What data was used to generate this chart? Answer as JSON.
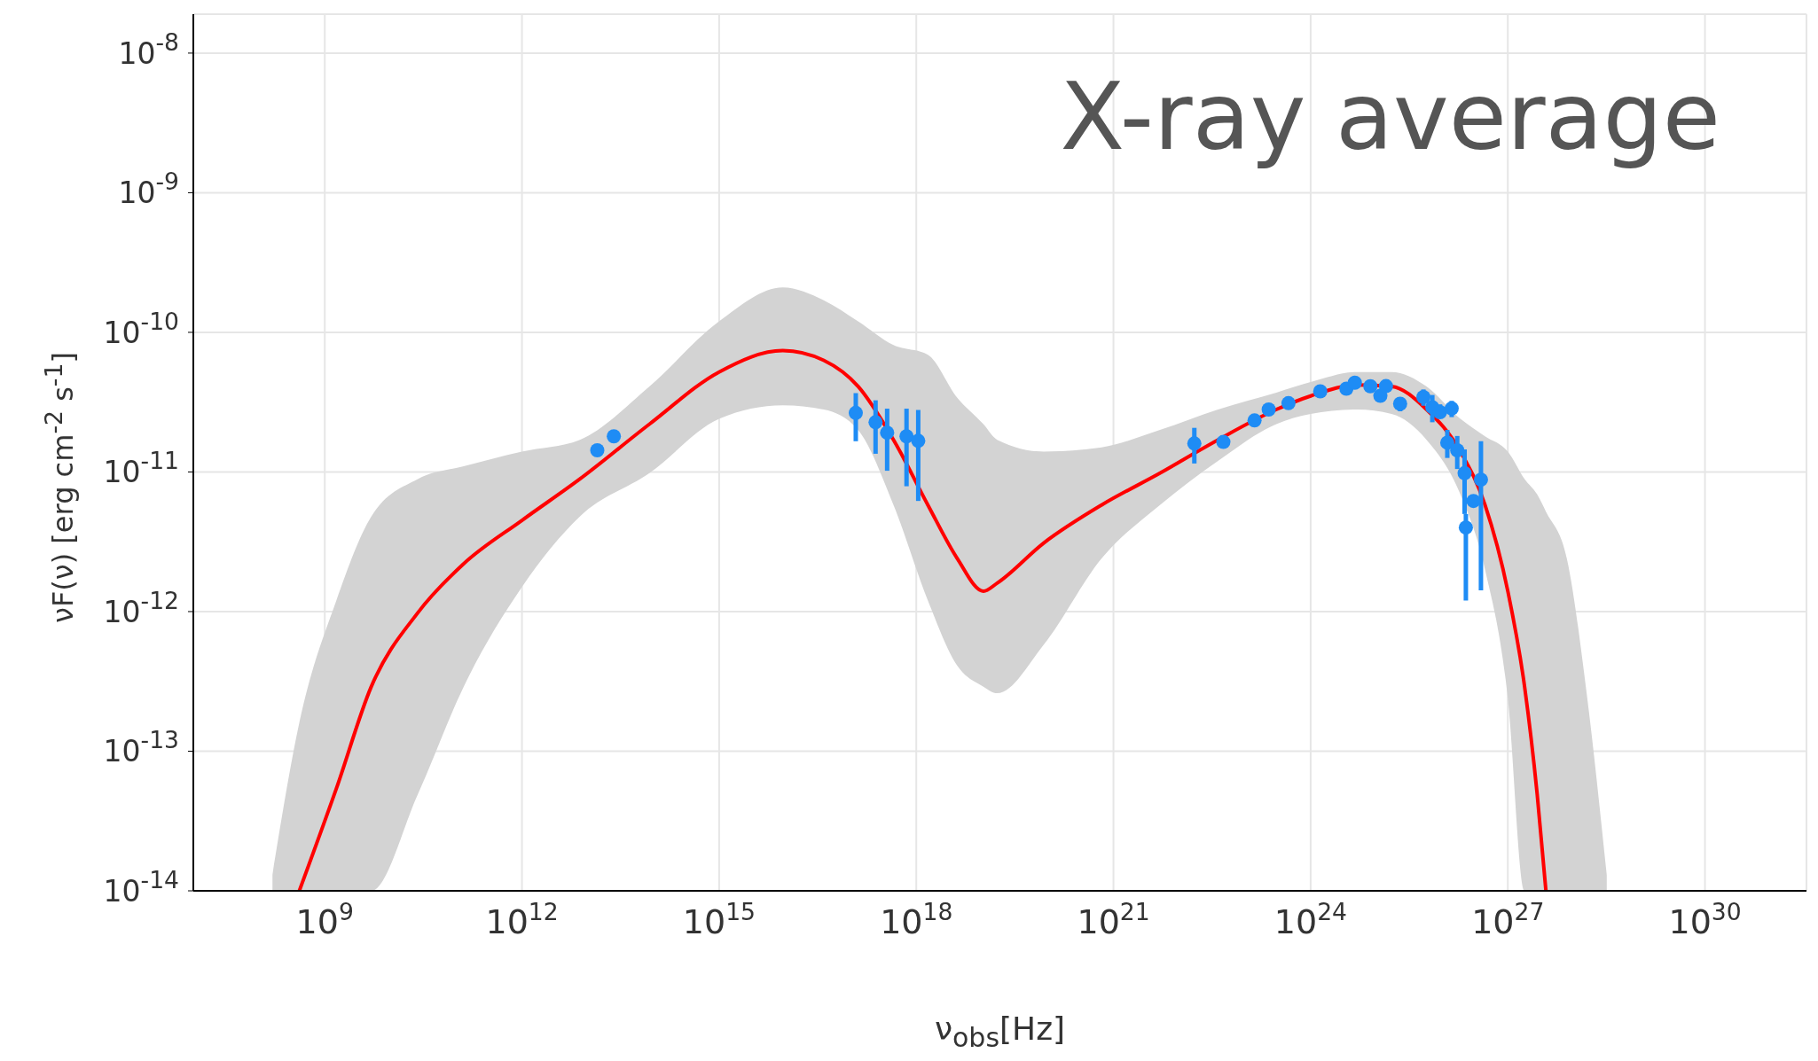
{
  "chart_data": {
    "type": "line",
    "annotations": [
      "X-ray average"
    ],
    "xlabel": "ν$_{obs}$[Hz]",
    "ylabel": "νF(ν) [erg cm$^{-2}$ s$^{-1}$]",
    "log": "xy",
    "grid": true,
    "legend": false,
    "xlim": [
      10000000.0,
      3.5e+31
    ],
    "ylim": [
      1e-14,
      1.9e-08
    ],
    "xticks": [
      {
        "value": 1000000000.0,
        "label": "10$^{9}$"
      },
      {
        "value": 1000000000000.0,
        "label": "10$^{12}$"
      },
      {
        "value": 1000000000000000.0,
        "label": "10$^{15}$"
      },
      {
        "value": 1e+18,
        "label": "10$^{18}$"
      },
      {
        "value": 1e+21,
        "label": "10$^{21}$"
      },
      {
        "value": 1e+24,
        "label": "10$^{24}$"
      },
      {
        "value": 1e+27,
        "label": "10$^{27}$"
      },
      {
        "value": 1e+30,
        "label": "10$^{30}$"
      }
    ],
    "yticks": [
      {
        "value": 1e-14,
        "label": "10$^{-14}$"
      },
      {
        "value": 1e-13,
        "label": "10$^{-13}$"
      },
      {
        "value": 1e-12,
        "label": "10$^{-12}$"
      },
      {
        "value": 1e-11,
        "label": "10$^{-11}$"
      },
      {
        "value": 1e-10,
        "label": "10$^{-10}$"
      },
      {
        "value": 1e-09,
        "label": "10$^{-9}$"
      },
      {
        "value": 1e-08,
        "label": "10$^{-8}$"
      }
    ],
    "series": [
      {
        "color": "#ff0000",
        "line_style": "solid",
        "x": [
          160000000.0,
          410000000.0,
          1500000000.0,
          5100000000.0,
          26000000000.0,
          130000000000.0,
          1000000000000.0,
          7600000000000.0,
          87000000000000.0,
          1000000000000000.0,
          9300000000000000.0,
          3.9e+16,
          1.3e+17,
          4.5e+17,
          1.5e+18,
          4.2e+18,
          1.05e+19,
          1.7e+19,
          8.7e+19,
          6.6e+20,
          5.1e+21,
          3.9e+22,
          3e+23,
          1e+24,
          5.1e+24,
          1.7e+25,
          5.8e+25,
          1.9e+26,
          4.5e+26,
          1e+27,
          1.8e+27,
          2.8e+27,
          3.8e+27,
          7.9e+27,
          1.6e+28,
          3.2e+28
        ],
        "values": [
          null,
          1e-14,
          5.4e-14,
          2.9e-13,
          9.8e-13,
          2.2e-12,
          4.5e-12,
          8.9e-12,
          2.2e-11,
          5.2e-11,
          7.4e-11,
          6.3e-11,
          4.1e-11,
          1.7e-11,
          5.8e-12,
          2.4e-12,
          1.4e-12,
          1.6e-12,
          3.1e-12,
          5.8e-12,
          9.8e-12,
          1.7e-11,
          2.8e-11,
          3.5e-11,
          4.2e-11,
          4.1e-11,
          2.8e-11,
          1.4e-11,
          5.8e-12,
          1.4e-12,
          2.9e-13,
          4.9e-14,
          1e-14,
          null,
          null,
          null
        ],
        "lower": [
          1e-14,
          1e-14,
          1e-14,
          1e-14,
          4.9e-14,
          2.9e-13,
          1.5e-12,
          4.8e-12,
          9.8e-12,
          2.4e-11,
          3e-11,
          2.8e-11,
          2e-11,
          5.8e-12,
          1.2e-12,
          4.1e-13,
          2.9e-13,
          2.6e-13,
          5.8e-13,
          2.4e-12,
          5.8e-12,
          1.2e-11,
          2.2e-11,
          2.6e-11,
          2.8e-11,
          2.6e-11,
          1.7e-11,
          6.9e-12,
          2e-12,
          2.4e-13,
          1e-14,
          1e-14,
          1e-14,
          1e-14,
          1e-14,
          1e-14
        ],
        "upper": [
          1.3e-14,
          1.6e-13,
          1.2e-12,
          4.8e-12,
          8.9e-12,
          1.1e-11,
          1.4e-11,
          1.7e-11,
          4.1e-11,
          1.2e-10,
          2.1e-10,
          1.7e-10,
          1.2e-10,
          8.1e-11,
          6.9e-11,
          3.4e-11,
          2.2e-11,
          1.7e-11,
          1.4e-11,
          1.5e-11,
          2e-11,
          2.8e-11,
          3.7e-11,
          4.4e-11,
          5.2e-11,
          5.2e-11,
          4.1e-11,
          2.4e-11,
          1.8e-11,
          1.4e-11,
          8.9e-12,
          6.9e-12,
          5.2e-12,
          2.4e-12,
          2.5e-13,
          1.3e-14
        ]
      },
      {
        "type": "scatter",
        "color": "#1e8cf5",
        "marker": "circle",
        "x": [
          14000000000000.0,
          25000000000000.0,
          1.2e+17,
          2.4e+17,
          3.6e+17,
          7.1e+17,
          1.07e+18,
          1.7e+22,
          4.7e+22,
          1.4e+23,
          2.3e+23,
          4.6e+23,
          1.4e+24,
          3.5e+24,
          4.7e+24,
          8.1e+24,
          1.15e+25,
          1.4e+25,
          2.3e+25,
          5.2e+25,
          7.1e+25,
          9.3e+25,
          1.4e+26,
          1.2e+26,
          1.7e+26,
          2.2e+26,
          2.3e+26,
          3e+26,
          3.9e+26
        ],
        "values": [
          1.43e-11,
          1.8e-11,
          2.65e-11,
          2.27e-11,
          1.91e-11,
          1.8e-11,
          1.67e-11,
          1.6e-11,
          1.64e-11,
          2.34e-11,
          2.8e-11,
          3.11e-11,
          3.78e-11,
          3.95e-11,
          4.36e-11,
          4.11e-11,
          3.51e-11,
          4.12e-11,
          3.08e-11,
          3.44e-11,
          2.91e-11,
          2.68e-11,
          2.85e-11,
          1.62e-11,
          1.43e-11,
          9.8e-12,
          4e-12,
          6.2e-12,
          8.8e-12
        ],
        "errors": [
          null,
          null,
          [
            1.66e-11,
            3.67e-11
          ],
          [
            1.35e-11,
            3.26e-11
          ],
          [
            1.02e-11,
            2.84e-11
          ],
          [
            7.9e-12,
            2.84e-11
          ],
          [
            6.2e-12,
            2.78e-11
          ],
          [
            1.15e-11,
            2.07e-11
          ],
          null,
          null,
          null,
          null,
          null,
          null,
          null,
          null,
          null,
          null,
          [
            2.72e-11,
            3.4e-11
          ],
          [
            2.98e-11,
            3.9e-11
          ],
          [
            2.27e-11,
            3.56e-11
          ],
          [
            2.43e-11,
            3.05e-11
          ],
          [
            2.47e-11,
            3.23e-11
          ],
          [
            1.26e-11,
            2e-11
          ],
          [
            1.05e-11,
            1.81e-11
          ],
          [
            5e-12,
            1.45e-11
          ],
          [
            1.2e-12,
            5e-12
          ],
          null,
          [
            1.42e-12,
            1.66e-11
          ]
        ]
      }
    ]
  }
}
